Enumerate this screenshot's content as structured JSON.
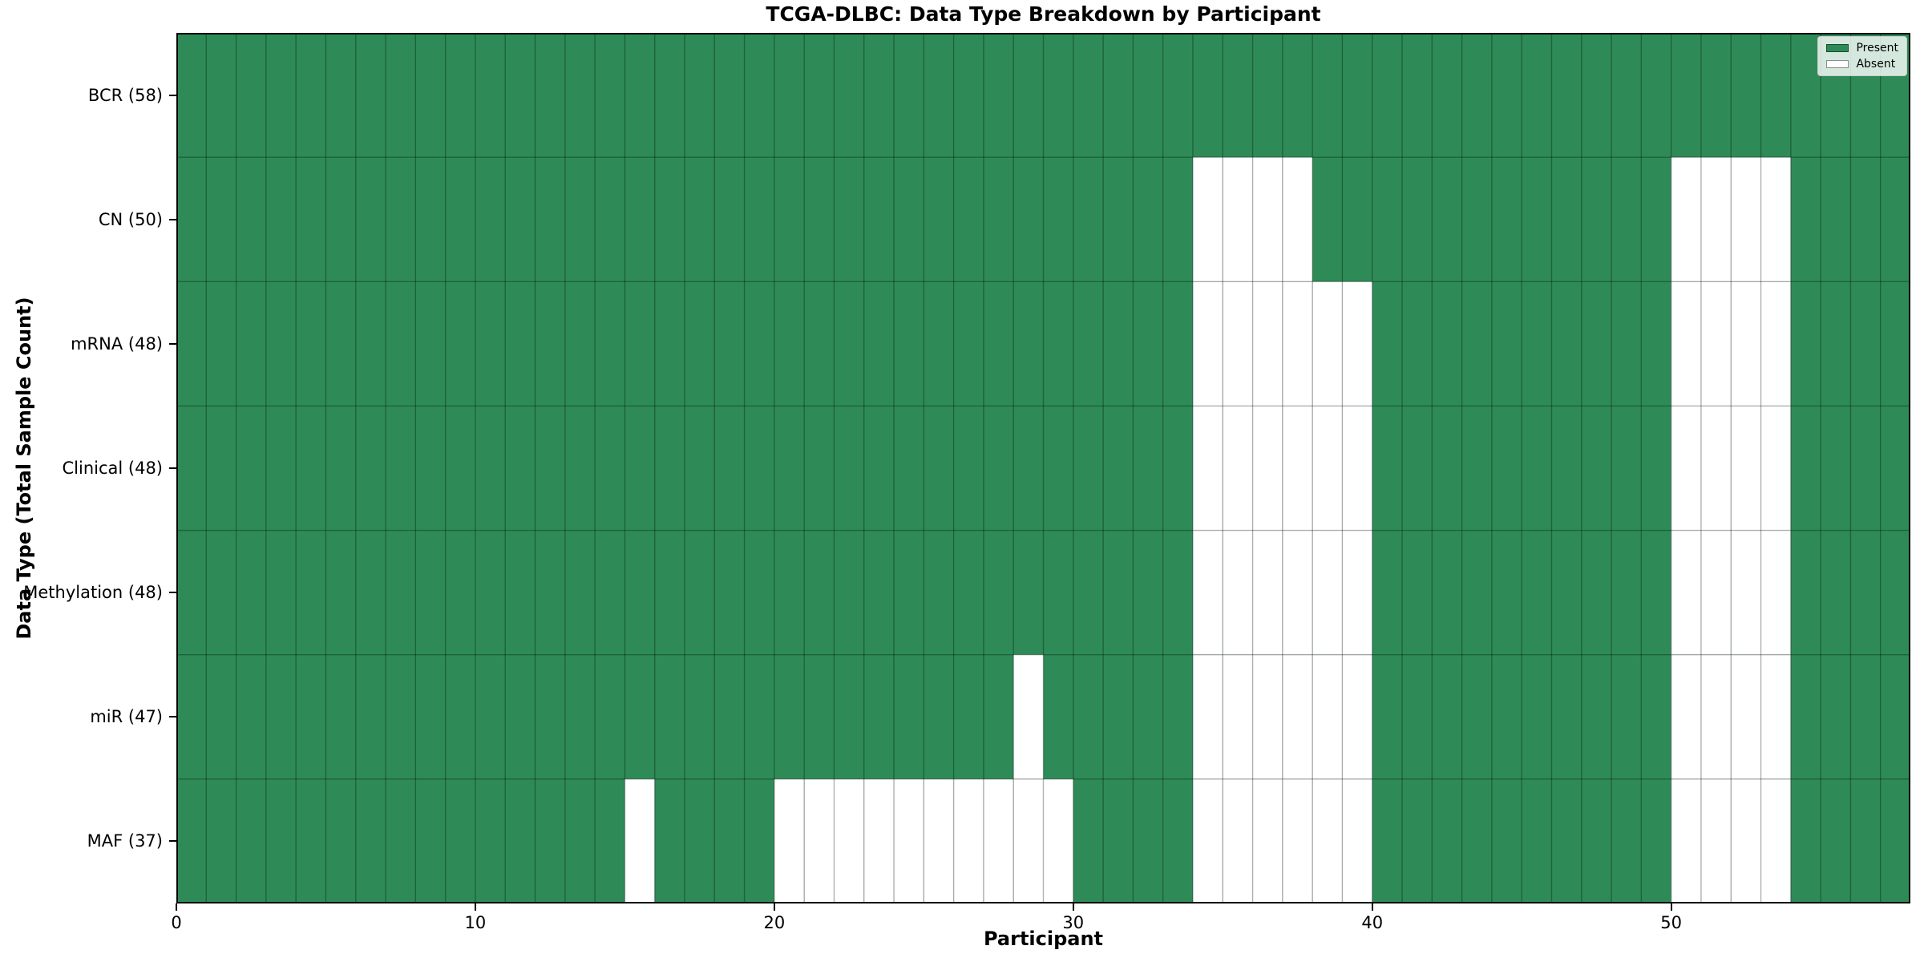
{
  "chart_data": {
    "type": "heatmap",
    "title": "TCGA-DLBC: Data Type Breakdown by Participant",
    "xlabel": "Participant",
    "ylabel": "Data Type (Total Sample Count)",
    "n_participants": 58,
    "x_axis": {
      "min": 0,
      "max": 58,
      "ticks": [
        0,
        10,
        20,
        30,
        40,
        50
      ]
    },
    "rows": [
      {
        "label": "BCR (58)",
        "data_type": "BCR",
        "present_count": 58,
        "absent_participants": []
      },
      {
        "label": "CN (50)",
        "data_type": "CN",
        "present_count": 50,
        "absent_participants": [
          34,
          35,
          36,
          37,
          50,
          51,
          52,
          53
        ]
      },
      {
        "label": "mRNA (48)",
        "data_type": "mRNA",
        "present_count": 48,
        "absent_participants": [
          34,
          35,
          36,
          37,
          38,
          39,
          50,
          51,
          52,
          53
        ]
      },
      {
        "label": "Clinical (48)",
        "data_type": "Clinical",
        "present_count": 48,
        "absent_participants": [
          34,
          35,
          36,
          37,
          38,
          39,
          50,
          51,
          52,
          53
        ]
      },
      {
        "label": "Methylation (48)",
        "data_type": "Methylation",
        "present_count": 48,
        "absent_participants": [
          34,
          35,
          36,
          37,
          38,
          39,
          50,
          51,
          52,
          53
        ]
      },
      {
        "label": "miR (47)",
        "data_type": "miR",
        "present_count": 47,
        "absent_participants": [
          28,
          34,
          35,
          36,
          37,
          38,
          39,
          50,
          51,
          52,
          53
        ]
      },
      {
        "label": "MAF (37)",
        "data_type": "MAF",
        "present_count": 37,
        "absent_participants": [
          15,
          20,
          21,
          22,
          23,
          24,
          25,
          26,
          27,
          28,
          29,
          34,
          35,
          36,
          37,
          38,
          39,
          50,
          51,
          52,
          53
        ]
      }
    ],
    "legend": {
      "position": "upper right",
      "entries": [
        {
          "label": "Present",
          "color": "#2e8b57"
        },
        {
          "label": "Absent",
          "color": "#ffffff"
        }
      ]
    },
    "colors": {
      "present": "#2e8b57",
      "absent": "#ffffff",
      "gridline": "#000000",
      "gridline_opacity": 0.3,
      "spine": "#000000",
      "text": "#000000"
    },
    "grid": true
  }
}
